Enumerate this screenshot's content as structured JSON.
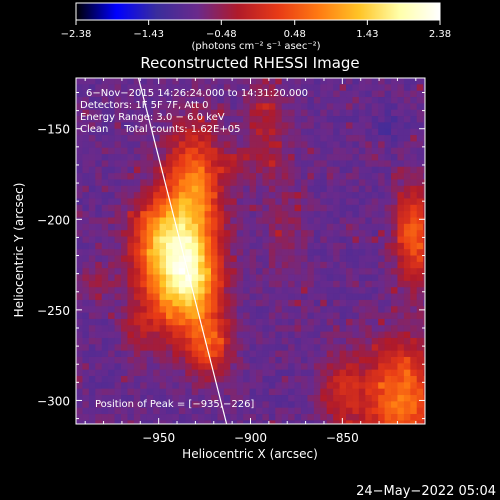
{
  "colors": {
    "background": "#000000",
    "text": "#ffffff",
    "colormap": [
      "#000000",
      "#0000ff",
      "#3a2d9c",
      "#6a2a8c",
      "#b01a2a",
      "#e83a16",
      "#ff7a12",
      "#ffc426",
      "#ffffaa",
      "#ffffff"
    ]
  },
  "chart_data": {
    "type": "heatmap",
    "title": "Reconstructed RHESSI Image",
    "xlabel": "Heliocentric X (arcsec)",
    "ylabel": "Heliocentric Y (arcsec)",
    "xlim": [
      -995,
      -805
    ],
    "ylim": [
      -313,
      -122
    ],
    "x_ticks": [
      -950,
      -900,
      -850
    ],
    "x_tick_labels": [
      "−950",
      "−900",
      "−850"
    ],
    "y_ticks": [
      -150,
      -200,
      -250,
      -300
    ],
    "y_tick_labels": [
      "−150",
      "−200",
      "−250",
      "−300"
    ],
    "colorbar": {
      "range": [
        -2.38,
        2.38
      ],
      "tick_values": [
        -2.38,
        -1.43,
        -0.48,
        0.48,
        1.43,
        2.38
      ],
      "tick_labels": [
        "−2.38",
        "−1.43",
        "−0.48",
        "0.48",
        "1.43",
        "2.38"
      ],
      "units_label": "(photons cm⁻² s⁻¹ asec⁻²)"
    },
    "annotations": [
      "6−Nov−2015 14:26:24.000 to 14:31:20.000",
      "Detectors: 1F 5F 7F, Att 0",
      "Energy Range: 3.0 − 6.0 keV",
      "Clean     Total counts: 1.62E+05"
    ],
    "peak_label": "Position of Peak = [−935,−226]",
    "peak": {
      "x": -935,
      "y": -226
    },
    "limb_line": [
      [
        -961,
        -122
      ],
      [
        -913,
        -313
      ]
    ],
    "sources": [
      {
        "x": -940,
        "y": -225,
        "sx": 14,
        "sy": 24,
        "amp": 2.5
      },
      {
        "x": -952,
        "y": -208,
        "sx": 9,
        "sy": 14,
        "amp": 0.6
      },
      {
        "x": -931,
        "y": -180,
        "sx": 10,
        "sy": 22,
        "amp": 1.4
      },
      {
        "x": -930,
        "y": -238,
        "sx": 8,
        "sy": 16,
        "amp": 0.9
      },
      {
        "x": -922,
        "y": -270,
        "sx": 8,
        "sy": 12,
        "amp": 1.1
      },
      {
        "x": -962,
        "y": -262,
        "sx": 6,
        "sy": 9,
        "amp": 0.4
      },
      {
        "x": -985,
        "y": -235,
        "sx": 6,
        "sy": 6,
        "amp": 0.5
      },
      {
        "x": -910,
        "y": -170,
        "sx": 5,
        "sy": 7,
        "amp": 0.4
      },
      {
        "x": -818,
        "y": -300,
        "sx": 14,
        "sy": 22,
        "amp": 1.6
      },
      {
        "x": -811,
        "y": -208,
        "sx": 7,
        "sy": 18,
        "amp": 1.4
      },
      {
        "x": -850,
        "y": -295,
        "sx": 8,
        "sy": 14,
        "amp": 0.8
      },
      {
        "x": -892,
        "y": -150,
        "sx": 8,
        "sy": 20,
        "amp": 0.6
      },
      {
        "x": -880,
        "y": -210,
        "sx": 7,
        "sy": 22,
        "amp": 0.35
      },
      {
        "x": -825,
        "y": -150,
        "sx": 6,
        "sy": 8,
        "amp": -0.2
      }
    ],
    "background_level": -0.85,
    "grid": false
  },
  "footer": {
    "timestamp": "24−May−2022 05:04"
  }
}
